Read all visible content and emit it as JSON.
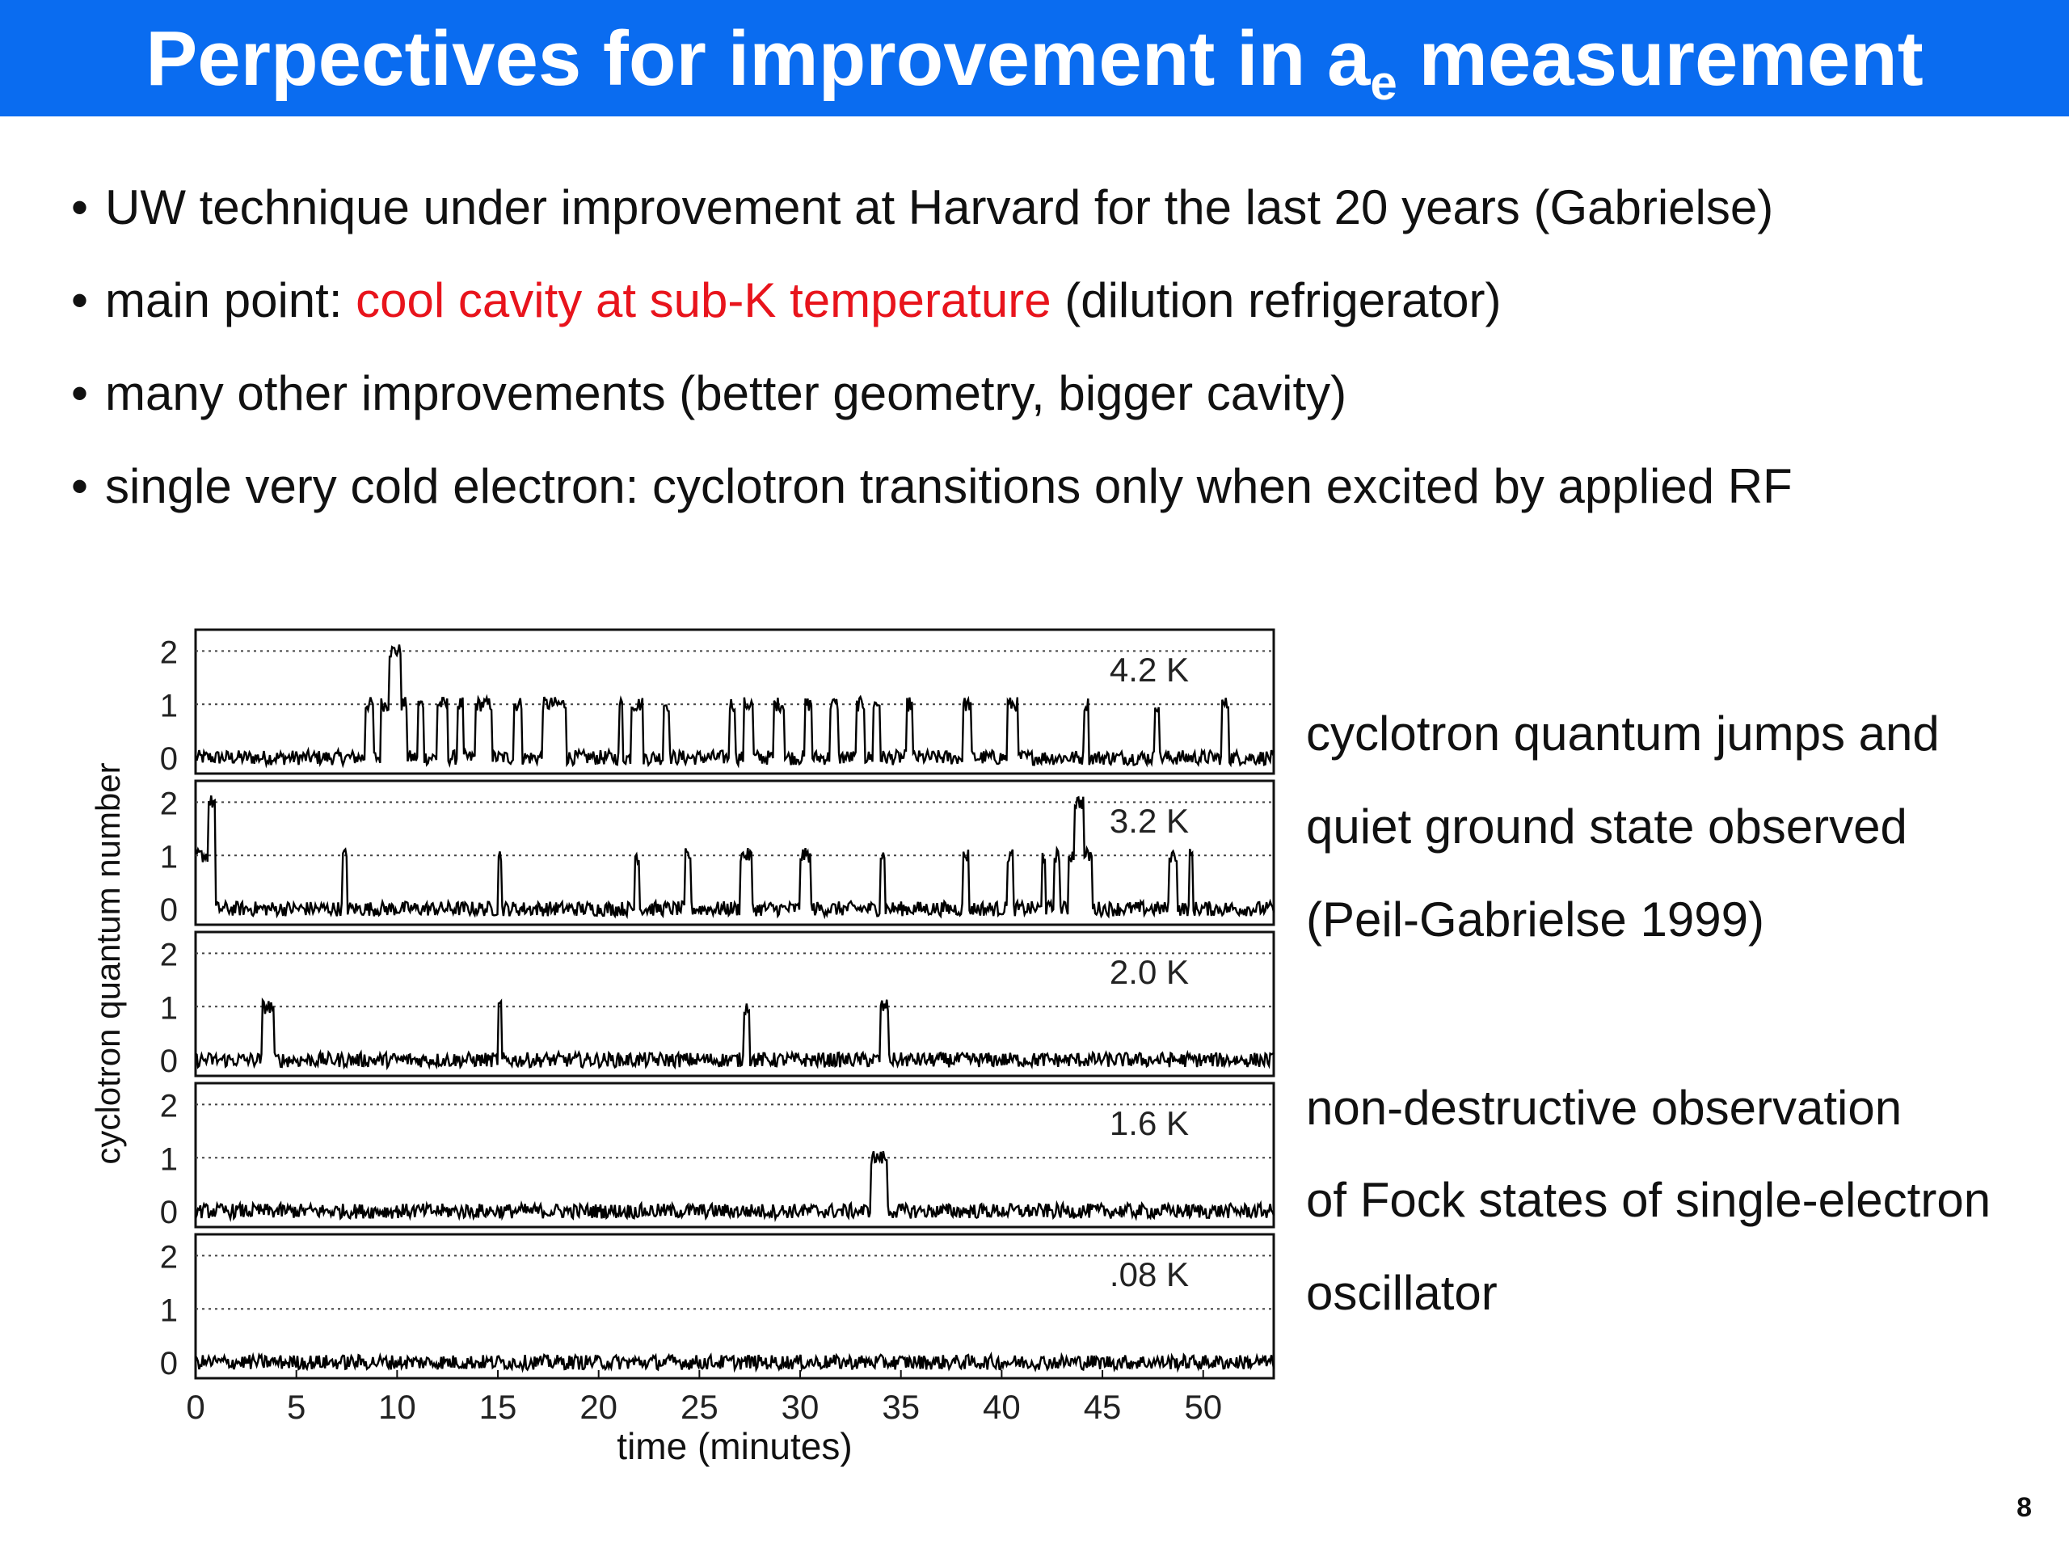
{
  "slide": {
    "title_main": "Perpectives for improvement in a",
    "title_sub": "e",
    "title_end": " measurement",
    "page_number": "8"
  },
  "bullets": [
    {
      "bullet": "•",
      "text": "UW technique under improvement at Harvard for the last 20 years (Gabrielse)"
    },
    {
      "bullet": "•",
      "pre": "main point: ",
      "highlight": "cool cavity at sub-K temperature",
      "post": " (dilution refrigerator)"
    },
    {
      "bullet": "•",
      "text": "many other improvements (better geometry, bigger cavity)"
    },
    {
      "bullet": "•",
      "text": "single very cold electron: cyclotron transitions only when excited by applied RF"
    }
  ],
  "captions": {
    "c1": "cyclotron quantum jumps and",
    "c2": "quiet ground state observed",
    "c3": "(Peil-Gabrielse 1999)",
    "c4": "non-destructive observation",
    "c5": "of Fock states of single-electron",
    "c6": "oscillator"
  },
  "chart_data": {
    "type": "line",
    "xlabel": "time (minutes)",
    "ylabel": "cyclotron quantum number",
    "xlim": [
      0,
      53.5
    ],
    "ylim": [
      -0.3,
      2.4
    ],
    "x_ticks": [
      "0",
      "5",
      "10",
      "15",
      "20",
      "25",
      "30",
      "35",
      "40",
      "45",
      "50"
    ],
    "y_ticks": [
      "0",
      "1",
      "2"
    ],
    "grid": "dotted lines at n=1 and n=2",
    "panels": [
      {
        "label": "4.2 K",
        "jumps": [
          [
            8.4,
            8.8,
            1
          ],
          [
            9.2,
            9.6,
            1
          ],
          [
            9.6,
            10.2,
            2
          ],
          [
            10.2,
            10.5,
            1
          ],
          [
            11.0,
            11.3,
            1
          ],
          [
            12.0,
            12.5,
            1
          ],
          [
            13.0,
            13.3,
            1
          ],
          [
            13.9,
            14.7,
            1
          ],
          [
            15.8,
            16.2,
            1
          ],
          [
            17.2,
            18.4,
            1
          ],
          [
            21.0,
            21.2,
            1
          ],
          [
            21.6,
            22.2,
            1
          ],
          [
            23.2,
            23.5,
            1
          ],
          [
            26.5,
            26.8,
            1
          ],
          [
            27.2,
            27.6,
            1
          ],
          [
            27.5,
            27.7,
            1
          ],
          [
            28.7,
            29.2,
            1
          ],
          [
            30.2,
            30.6,
            1
          ],
          [
            31.5,
            31.9,
            1
          ],
          [
            32.8,
            33.2,
            1
          ],
          [
            33.6,
            34.0,
            1
          ],
          [
            35.3,
            35.6,
            1
          ],
          [
            38.1,
            38.5,
            1
          ],
          [
            40.3,
            40.8,
            1
          ],
          [
            44.1,
            44.3,
            1
          ],
          [
            47.6,
            47.8,
            1
          ],
          [
            50.9,
            51.3,
            1
          ]
        ]
      },
      {
        "label": "3.2 K",
        "jumps": [
          [
            0.0,
            0.6,
            1
          ],
          [
            0.6,
            1.0,
            2
          ],
          [
            7.3,
            7.5,
            1
          ],
          [
            15.0,
            15.2,
            1
          ],
          [
            21.8,
            22.0,
            1
          ],
          [
            24.3,
            24.6,
            1
          ],
          [
            27.0,
            27.4,
            1
          ],
          [
            27.4,
            27.6,
            1
          ],
          [
            30.0,
            30.5,
            1
          ],
          [
            34.0,
            34.2,
            1
          ],
          [
            38.1,
            38.4,
            1
          ],
          [
            40.3,
            40.6,
            1
          ],
          [
            42.0,
            42.2,
            1
          ],
          [
            42.6,
            42.9,
            1
          ],
          [
            43.3,
            43.6,
            1
          ],
          [
            43.6,
            44.1,
            2
          ],
          [
            44.1,
            44.5,
            1
          ],
          [
            48.3,
            48.7,
            1
          ],
          [
            49.3,
            49.5,
            1
          ]
        ]
      },
      {
        "label": "2.0 K",
        "jumps": [
          [
            3.3,
            3.9,
            1
          ],
          [
            15.0,
            15.2,
            1
          ],
          [
            27.2,
            27.5,
            1
          ],
          [
            34.0,
            34.4,
            1
          ]
        ]
      },
      {
        "label": "1.6 K",
        "jumps": [
          [
            33.5,
            34.3,
            1
          ]
        ]
      },
      {
        "label": ".08 K",
        "jumps": []
      }
    ]
  }
}
